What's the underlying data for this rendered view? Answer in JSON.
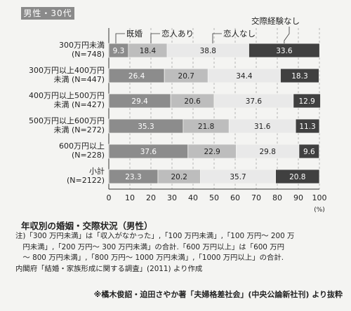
{
  "chart_data": {
    "type": "bar",
    "orientation": "horizontal",
    "stacked": true,
    "panel_label": "男性・30代",
    "categories": [
      [
        "300万円未満",
        "(N=748)"
      ],
      [
        "300万円以上400万円",
        "未満 (N=447)"
      ],
      [
        "400万円以上500万円",
        "未満 (N=427)"
      ],
      [
        "500万円以上600万円",
        "未満 (N=272)"
      ],
      [
        "600万円以上",
        "(N=228)"
      ],
      [
        "小計",
        "(N=2122)"
      ]
    ],
    "series": [
      {
        "name": "既婚",
        "values": [
          9.3,
          26.4,
          29.4,
          35.3,
          37.6,
          23.3
        ],
        "color": "#8c8c8c"
      },
      {
        "name": "恋人あり",
        "values": [
          18.4,
          20.7,
          20.6,
          21.8,
          22.9,
          20.2
        ],
        "color": "#bdbdbd"
      },
      {
        "name": "恋人なし",
        "values": [
          38.8,
          34.4,
          37.6,
          31.6,
          29.8,
          35.7
        ],
        "color": "#e9e9e9"
      },
      {
        "name": "交際経験なし",
        "values": [
          33.6,
          18.3,
          12.9,
          11.3,
          9.6,
          20.8
        ],
        "color": "#404040"
      }
    ],
    "xlim": [
      0,
      100
    ],
    "xticks": [
      0,
      10,
      20,
      30,
      40,
      50,
      60,
      70,
      80,
      90,
      100
    ],
    "xunit": "(%)",
    "grid": true
  },
  "caption": "年収別の婚姻・交際状況（男性）",
  "notes": "注)「300 万円未満」は「収入がなかった」,「100 万円未満」,「100 万円〜 200 万\n　円未満」,「200 万円〜 300 万円未満」の合計.「600 万円以上」は「600 万円\n　〜 800 万円未満」,「800 万円〜 1000 万円未満」,「1000 万円以上」の合計.\n内閣府「結婚・家族形成に関する調査」(2011) より作成",
  "credit": "※橘木俊詔・迫田さやか著「夫婦格差社会」(中央公論新社刊) より抜粋",
  "colors": {
    "background": "#f4f4f2",
    "label_light": "#ffffff",
    "label_dark": "#222222"
  }
}
